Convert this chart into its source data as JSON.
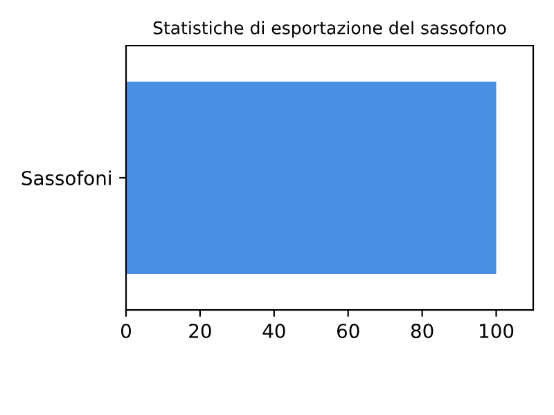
{
  "chart_data": {
    "type": "bar",
    "orientation": "horizontal",
    "title": "Statistiche di esportazione del sassofono",
    "categories": [
      "Sassofoni"
    ],
    "values": [
      100
    ],
    "color": "#4a90e2",
    "xlim": [
      0,
      110
    ],
    "xticks": [
      0,
      20,
      40,
      60,
      80,
      100
    ],
    "grid": false,
    "legend": false
  }
}
